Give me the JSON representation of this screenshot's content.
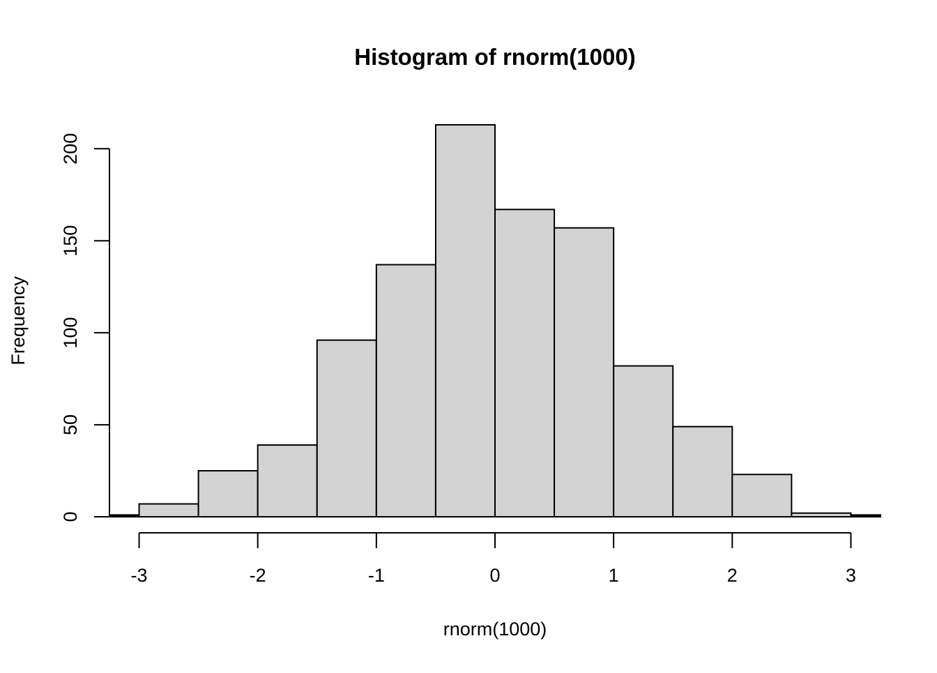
{
  "chart_data": {
    "type": "bar",
    "title": "Histogram of rnorm(1000)",
    "xlabel": "rnorm(1000)",
    "ylabel": "Frequency",
    "xlim": [
      -3.25,
      3.25
    ],
    "ylim": [
      0,
      213
    ],
    "bins": [
      {
        "start": -3.5,
        "end": -3.0,
        "count": 1
      },
      {
        "start": -3.0,
        "end": -2.5,
        "count": 7
      },
      {
        "start": -2.5,
        "end": -2.0,
        "count": 25
      },
      {
        "start": -2.0,
        "end": -1.5,
        "count": 39
      },
      {
        "start": -1.5,
        "end": -1.0,
        "count": 96
      },
      {
        "start": -1.0,
        "end": -0.5,
        "count": 137
      },
      {
        "start": -0.5,
        "end": 0.0,
        "count": 213
      },
      {
        "start": 0.0,
        "end": 0.5,
        "count": 167
      },
      {
        "start": 0.5,
        "end": 1.0,
        "count": 157
      },
      {
        "start": 1.0,
        "end": 1.5,
        "count": 82
      },
      {
        "start": 1.5,
        "end": 2.0,
        "count": 49
      },
      {
        "start": 2.0,
        "end": 2.5,
        "count": 23
      },
      {
        "start": 2.5,
        "end": 3.0,
        "count": 2
      },
      {
        "start": 3.0,
        "end": 3.5,
        "count": 1
      }
    ],
    "x_ticks": [
      -3,
      -2,
      -1,
      0,
      1,
      2,
      3
    ],
    "x_tick_labels": [
      "-3",
      "-2",
      "-1",
      "0",
      "1",
      "2",
      "3"
    ],
    "y_ticks": [
      0,
      50,
      100,
      150,
      200
    ],
    "y_tick_labels": [
      "0",
      "50",
      "100",
      "150",
      "200"
    ],
    "grid": false,
    "legend": "none",
    "colors": {
      "bar_fill": "#d3d3d3",
      "bar_stroke": "#000000",
      "background": "#ffffff"
    }
  }
}
